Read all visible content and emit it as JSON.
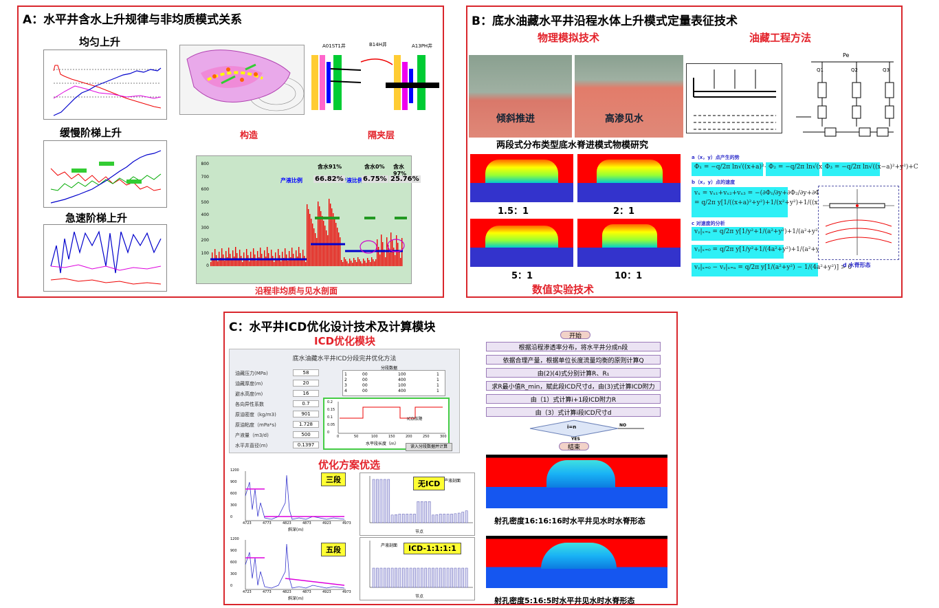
{
  "panelA": {
    "title": "A：水平井含水上升规律与非均质模式关系",
    "label_uniform": "均匀上升",
    "label_slow": "缓慢阶梯上升",
    "label_fast": "急速阶梯上升",
    "label_structure": "构造",
    "label_barrier": "隔夹层",
    "label_profile": "沿程非均质与见水剖面",
    "wells": [
      "A01ST1井",
      "B14H井",
      "A13PH井"
    ],
    "profile_yticks": [
      "800",
      "700",
      "600",
      "500",
      "400",
      "300",
      "200",
      "100",
      "0"
    ],
    "profile_legend": "产液比例",
    "watercut": [
      "含水91%",
      "含水0%",
      "含水97%"
    ],
    "ratios": [
      "66.82%",
      "6.75%",
      "25.76%"
    ]
  },
  "panelB": {
    "title": "B：底水油藏水平井沿程水体上升模式定量表征技术",
    "label_physical": "物理模拟技术",
    "label_reservoir": "油藏工程方法",
    "label_tilt": "倾斜推进",
    "label_highperm": "高渗见水",
    "label_study": "两段式分布类型底水脊进模式物模研究",
    "ratios": [
      "1.5：1",
      "2：1",
      "5：1",
      "10：1"
    ],
    "label_numeric": "数值实验技术",
    "formula_heads": [
      "a（x，y）点产生的势",
      "b（x，y）点的速度",
      "c 对速度的分析"
    ],
    "ridge_label": "d 水脊形态",
    "circuit_top": "Pe",
    "circuit_q": [
      "Q1",
      "Q2",
      "Q3"
    ]
  },
  "panelC": {
    "title": "C：水平井ICD优化设计技术及计算模块",
    "label_module": "ICD优化模块",
    "label_scheme": "优化方案优选",
    "window_title": "底水油藏水平井ICD分段完井优化方法",
    "form": [
      {
        "label": "油藏压力(MPa)",
        "value": "58"
      },
      {
        "label": "油藏厚度(m)",
        "value": "20"
      },
      {
        "label": "避水高度(m)",
        "value": "16"
      },
      {
        "label": "各向异性系数",
        "value": "0.7"
      },
      {
        "label": "原油密度（kg/m3)",
        "value": "901"
      },
      {
        "label": "原油粘度（mPa*s)",
        "value": "1.728"
      },
      {
        "label": "产液量（m3/d)",
        "value": "500"
      },
      {
        "label": "水平井直径(m)",
        "value": "0.1397"
      }
    ],
    "table_title": "分段数据",
    "table_rows": [
      [
        "1",
        "00",
        "100",
        "1"
      ],
      [
        "2",
        "00",
        "400",
        "1"
      ],
      [
        "3",
        "00",
        "100",
        "1"
      ],
      [
        "4",
        "00",
        "400",
        "1"
      ]
    ],
    "mini_xlabel": "水平段长度（m）",
    "mini_legend": "ICD压降",
    "mini_xticks": [
      "0",
      "50",
      "100",
      "150",
      "200",
      "250",
      "300"
    ],
    "mini_yticks": [
      "0.2",
      "0.15",
      "0.1",
      "0.05",
      "0"
    ],
    "compute_button": "读入分段数据并计算",
    "tags": [
      "三段",
      "无ICD",
      "五段",
      "ICD-1:1:1:1"
    ],
    "left_xticks": [
      "4723",
      "4773",
      "4823",
      "4873",
      "4923",
      "4973"
    ],
    "left_yticks": [
      "1200",
      "900",
      "600",
      "300",
      "0"
    ],
    "left_xlabel": "斜深(m)",
    "bar_legend": "产液剖面",
    "bar_xlabel": "节点",
    "flow": {
      "start": "开始",
      "steps": [
        "根据沿程渗透率分布，将水平井分成n段",
        "依据合理产量，根据单位长度流量均衡的原则计算Q",
        "由(2)(4)式分别计算R、R₁",
        "求R最小值R_min，赋此段ICD尺寸d，由(3)式计算ICD附力",
        "由（1）式计算i+1段ICD附力R",
        "由（3）式计算i段ICD尺寸d"
      ],
      "decision": "i=n",
      "yes": "YES",
      "no": "NO",
      "end": "结束"
    },
    "caption1": "射孔密度16:16:16时水平井见水时水脊形态",
    "caption2": "射孔密度5:16:5时水平井见水时水脊形态"
  },
  "colors": {
    "frame": "#d9262c",
    "accent_red": "#e3222a",
    "cyan": "#2ef0f6",
    "chart_green": "#c9e6c9"
  }
}
